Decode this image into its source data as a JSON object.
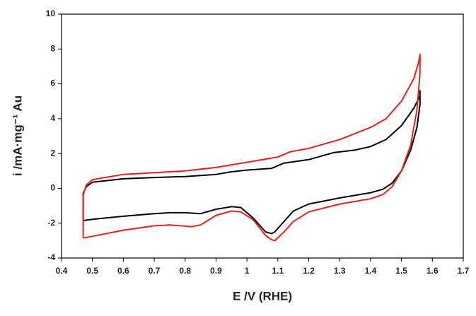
{
  "chart_data": {
    "type": "line",
    "xlabel": "E /V (RHE)",
    "ylabel": "i /mA·mg⁻¹ Au",
    "xlim": [
      0.4,
      1.7
    ],
    "xticks": [
      0.4,
      0.5,
      0.6,
      0.7,
      0.8,
      0.9,
      1,
      1.1,
      1.2,
      1.3,
      1.4,
      1.5,
      1.6,
      1.7
    ],
    "ylim": [
      -4,
      10
    ],
    "yticks": [
      -4,
      -2,
      0,
      2,
      4,
      6,
      8,
      10
    ],
    "series": [
      {
        "color": "#000000",
        "x": [
          0.47,
          0.47,
          0.48,
          0.5,
          0.6,
          0.7,
          0.8,
          0.9,
          0.95,
          1.0,
          1.08,
          1.12,
          1.2,
          1.28,
          1.35,
          1.4,
          1.45,
          1.5,
          1.54,
          1.56,
          1.56,
          1.56,
          1.55,
          1.53,
          1.5,
          1.47,
          1.44,
          1.4,
          1.3,
          1.2,
          1.15,
          1.12,
          1.09,
          1.08,
          1.06,
          1.02,
          0.98,
          0.95,
          0.9,
          0.85,
          0.8,
          0.75,
          0.7,
          0.6,
          0.5,
          0.47
        ],
        "values": [
          -1.8,
          -0.3,
          0.1,
          0.35,
          0.55,
          0.62,
          0.68,
          0.8,
          0.95,
          1.05,
          1.15,
          1.45,
          1.65,
          2.05,
          2.2,
          2.4,
          2.8,
          3.6,
          4.6,
          5.3,
          5.6,
          4.8,
          3.5,
          2.2,
          1.0,
          0.3,
          -0.05,
          -0.25,
          -0.55,
          -0.9,
          -1.3,
          -1.9,
          -2.5,
          -2.6,
          -2.5,
          -1.7,
          -1.1,
          -1.05,
          -1.2,
          -1.45,
          -1.4,
          -1.4,
          -1.45,
          -1.6,
          -1.78,
          -1.85
        ]
      },
      {
        "color": "#e8201c",
        "x": [
          0.47,
          0.47,
          0.48,
          0.5,
          0.6,
          0.7,
          0.8,
          0.9,
          1.0,
          1.1,
          1.14,
          1.2,
          1.3,
          1.4,
          1.45,
          1.5,
          1.54,
          1.555,
          1.56,
          1.56,
          1.55,
          1.53,
          1.5,
          1.47,
          1.44,
          1.4,
          1.3,
          1.2,
          1.15,
          1.12,
          1.09,
          1.08,
          1.06,
          1.02,
          0.98,
          0.95,
          0.9,
          0.85,
          0.82,
          0.75,
          0.7,
          0.6,
          0.5,
          0.47
        ],
        "values": [
          -2.85,
          -0.4,
          0.2,
          0.5,
          0.8,
          0.9,
          1.0,
          1.2,
          1.5,
          1.8,
          2.1,
          2.3,
          2.8,
          3.5,
          4.0,
          5.0,
          6.3,
          7.2,
          7.7,
          6.6,
          4.5,
          2.5,
          1.0,
          0.1,
          -0.35,
          -0.6,
          -0.9,
          -1.35,
          -1.9,
          -2.5,
          -3.0,
          -2.95,
          -2.7,
          -1.8,
          -1.35,
          -1.3,
          -1.55,
          -2.1,
          -2.2,
          -2.1,
          -2.15,
          -2.4,
          -2.75,
          -2.85
        ]
      }
    ]
  }
}
